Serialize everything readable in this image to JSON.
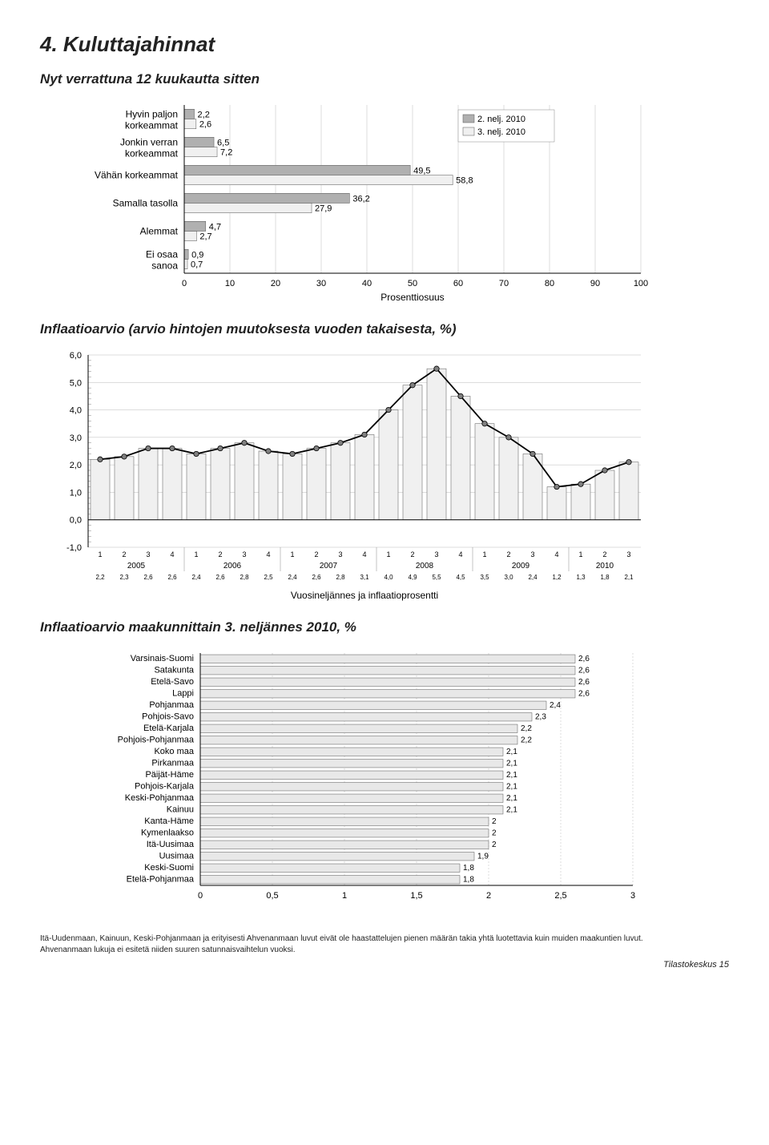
{
  "page": {
    "section_title": "4. Kuluttajahinnat",
    "hbar_subtitle": "Nyt verrattuna 12 kuukautta sitten",
    "linebar_subtitle": "Inflaatioarvio (arvio hintojen muutoksesta vuoden takaisesta, %)",
    "region_subtitle": "Inflaatioarvio maakunnittain 3. neljännes 2010, %",
    "footnote_line1": "Itä-Uudenmaan, Kainuun, Keski-Pohjanmaan ja erityisesti Ahvenanmaan luvut eivät ole haastattelujen pienen määrän takia yhtä luotettavia kuin muiden maakuntien luvut.",
    "footnote_line2": "Ahvenanmaan lukuja ei esitetä niiden suuren satunnaisvaihtelun vuoksi.",
    "footer_text": "Tilastokeskus 15"
  },
  "hbar_chart": {
    "type": "bar",
    "orientation": "horizontal",
    "categories": [
      "Hyvin paljon korkeammat",
      "Jonkin verran korkeammat",
      "Vähän korkeammat",
      "Samalla tasolla",
      "Alemmat",
      "Ei osaa sanoa"
    ],
    "series_a_name": "2. nelj. 2010",
    "series_b_name": "3. nelj. 2010",
    "series_a": [
      2.2,
      6.5,
      49.5,
      36.2,
      4.7,
      0.9
    ],
    "series_b": [
      2.6,
      7.2,
      58.8,
      27.9,
      2.7,
      0.7
    ],
    "xlim": [
      0,
      100
    ],
    "xtick_step": 10,
    "xlabel": "Prosenttiosuus",
    "bar_color_a": "#b0b0b0",
    "bar_color_b": "#f0f0f0",
    "label_fontsize": 12
  },
  "linebar_chart": {
    "type": "bar+line",
    "ylim": [
      -1.0,
      6.0
    ],
    "ytick_step": 1.0,
    "x_years": [
      "2005",
      "2006",
      "2007",
      "2008",
      "2009",
      "2010"
    ],
    "x_quarters": [
      1,
      2,
      3,
      4,
      1,
      2,
      3,
      4,
      1,
      2,
      3,
      4,
      1,
      2,
      3,
      4,
      1,
      2,
      3,
      4,
      1,
      2,
      3
    ],
    "values": [
      2.2,
      2.3,
      2.6,
      2.6,
      2.4,
      2.6,
      2.8,
      2.5,
      2.4,
      2.6,
      2.8,
      3.1,
      4.0,
      4.9,
      5.5,
      4.5,
      3.5,
      3.0,
      2.4,
      1.2,
      1.3,
      1.8,
      2.1
    ],
    "caption": "Vuosineljännes ja inflaatioprosentti",
    "bar_fill": "#f0f0f0",
    "bar_stroke": "#555555",
    "line_color": "#000000",
    "marker_fill": "#808080",
    "marker_stroke": "#000000"
  },
  "region_chart": {
    "type": "bar",
    "orientation": "horizontal",
    "xlim": [
      0,
      3
    ],
    "xtick_step": 0.5,
    "bar_color": "#e8e8e8",
    "bar_stroke": "#555555",
    "regions": [
      {
        "name": "Varsinais-Suomi",
        "value": 2.6
      },
      {
        "name": "Satakunta",
        "value": 2.6
      },
      {
        "name": "Etelä-Savo",
        "value": 2.6
      },
      {
        "name": "Lappi",
        "value": 2.6
      },
      {
        "name": "Pohjanmaa",
        "value": 2.4
      },
      {
        "name": "Pohjois-Savo",
        "value": 2.3
      },
      {
        "name": "Etelä-Karjala",
        "value": 2.2
      },
      {
        "name": "Pohjois-Pohjanmaa",
        "value": 2.2
      },
      {
        "name": "Koko maa",
        "value": 2.1
      },
      {
        "name": "Pirkanmaa",
        "value": 2.1
      },
      {
        "name": "Päijät-Häme",
        "value": 2.1
      },
      {
        "name": "Pohjois-Karjala",
        "value": 2.1
      },
      {
        "name": "Keski-Pohjanmaa",
        "value": 2.1
      },
      {
        "name": "Kainuu",
        "value": 2.1
      },
      {
        "name": "Kanta-Häme",
        "value": 2.0
      },
      {
        "name": "Kymenlaakso",
        "value": 2.0
      },
      {
        "name": "Itä-Uusimaa",
        "value": 2.0
      },
      {
        "name": "Uusimaa",
        "value": 1.9
      },
      {
        "name": "Keski-Suomi",
        "value": 1.8
      },
      {
        "name": "Etelä-Pohjanmaa",
        "value": 1.8
      }
    ]
  }
}
